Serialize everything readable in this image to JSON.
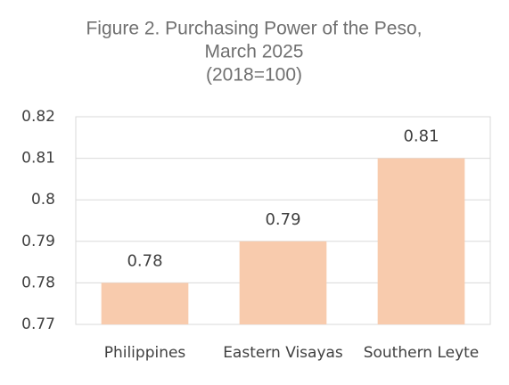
{
  "chart_data": {
    "type": "bar",
    "title": [
      "Figure 2. Purchasing Power of the Peso,",
      "March 2025",
      "(2018=100)"
    ],
    "categories": [
      "Philippines",
      "Eastern Visayas",
      "Southern Leyte"
    ],
    "values": [
      0.78,
      0.79,
      0.81
    ],
    "color": "#f8cbad",
    "ylim": [
      0.77,
      0.82
    ],
    "yticks": [
      0.77,
      0.78,
      0.79,
      0.8,
      0.81,
      0.82
    ],
    "grid": true
  }
}
